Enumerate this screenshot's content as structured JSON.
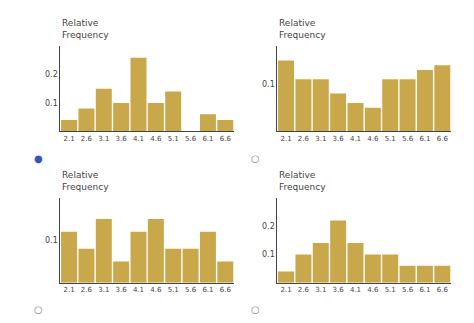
{
  "chart_data": [
    {
      "type": "bar",
      "title": "Relative\nFrequency",
      "categories": [
        "2.1",
        "2.6",
        "3.1",
        "3.6",
        "4.1",
        "4.6",
        "5.1",
        "5.6",
        "6.1",
        "6.6"
      ],
      "values": [
        0.04,
        0.08,
        0.15,
        0.1,
        0.26,
        0.1,
        0.14,
        0.0,
        0.06,
        0.04
      ],
      "color": "#C8A84B",
      "ylim": [
        0,
        0.3
      ],
      "yticks": [
        0.1,
        0.2
      ],
      "grid": false,
      "annotations": [
        {
          "text": "●",
          "color": "#3355bb"
        }
      ]
    },
    {
      "type": "bar",
      "title": "Relative\nFrequency",
      "categories": [
        "2.1",
        "2.6",
        "3.1",
        "3.6",
        "4.1",
        "4.6",
        "5.1",
        "5.6",
        "6.1",
        "6.6"
      ],
      "values": [
        0.15,
        0.11,
        0.11,
        0.08,
        0.06,
        0.05,
        0.11,
        0.11,
        0.13,
        0.14
      ],
      "color": "#C8A84B",
      "ylim": [
        0,
        0.18
      ],
      "yticks": [
        0.1
      ],
      "grid": false,
      "annotations": [
        {
          "text": "○",
          "color": "#888888"
        }
      ]
    },
    {
      "type": "bar",
      "title": "Relative\nFrequency",
      "categories": [
        "2.1",
        "2.6",
        "3.1",
        "3.6",
        "4.1",
        "4.6",
        "5.1",
        "5.6",
        "6.1",
        "6.6"
      ],
      "values": [
        0.12,
        0.08,
        0.15,
        0.05,
        0.12,
        0.15,
        0.08,
        0.08,
        0.12,
        0.05
      ],
      "color": "#C8A84B",
      "ylim": [
        0,
        0.2
      ],
      "yticks": [
        0.1
      ],
      "grid": false,
      "annotations": [
        {
          "text": "○",
          "color": "#888888"
        }
      ]
    },
    {
      "type": "bar",
      "title": "Relative\nFrequency",
      "categories": [
        "2.1",
        "2.6",
        "3.1",
        "3.6",
        "4.1",
        "4.6",
        "5.1",
        "5.6",
        "6.1",
        "6.6"
      ],
      "values": [
        0.04,
        0.1,
        0.14,
        0.22,
        0.14,
        0.1,
        0.1,
        0.06,
        0.06,
        0.06
      ],
      "color": "#C8A84B",
      "ylim": [
        0,
        0.3
      ],
      "yticks": [
        0.1,
        0.2
      ],
      "grid": false,
      "annotations": [
        {
          "text": "○",
          "color": "#888888"
        }
      ]
    }
  ]
}
